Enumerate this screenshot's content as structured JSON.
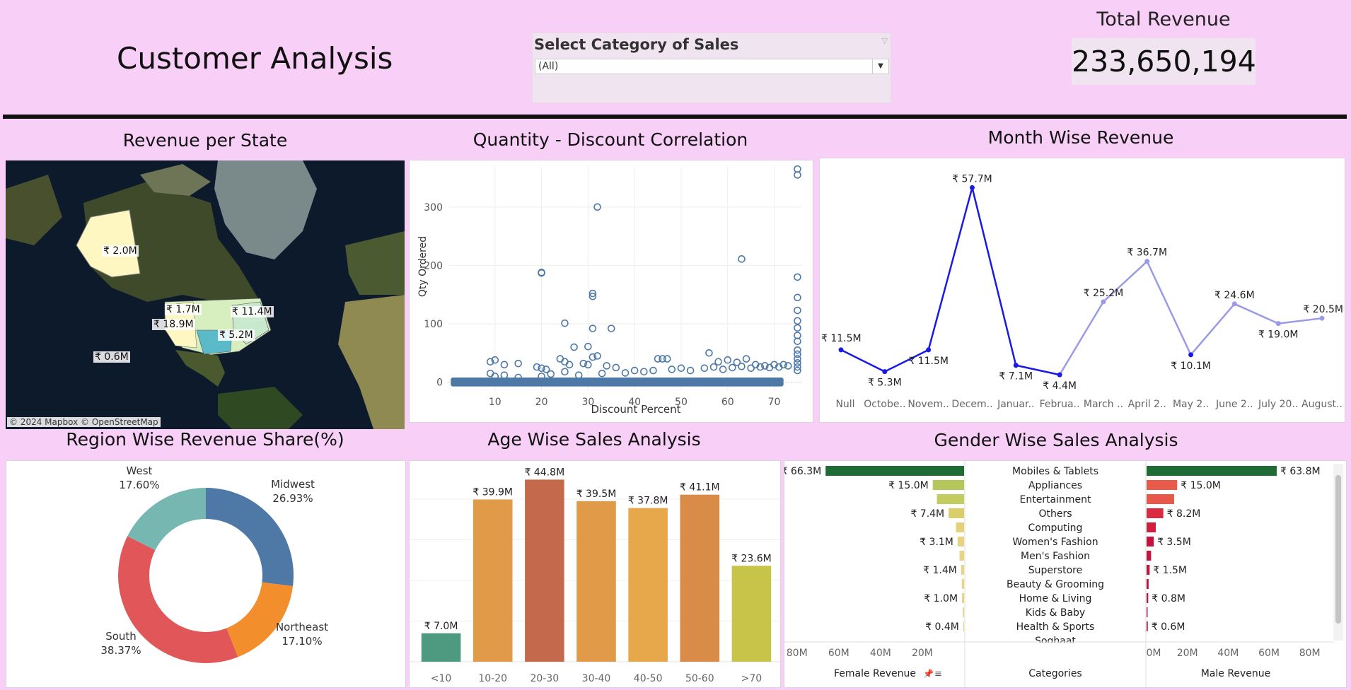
{
  "header": {
    "title": "Customer Analysis",
    "filter": {
      "label": "Select Category of Sales",
      "value": "(All)"
    },
    "kpi": {
      "label": "Total Revenue",
      "value": "233,650,194"
    }
  },
  "map": {
    "title": "Revenue per State",
    "attribution": "© 2024 Mapbox © OpenStreetMap",
    "labels": [
      "₹ 2.0M",
      "₹ 1.7M",
      "₹ 11.4M",
      "₹ 18.9M",
      "₹ 5.2M",
      "₹ 0.6M"
    ]
  },
  "scatter": {
    "title": "Quantity - Discount Correlation",
    "chart_data": {
      "type": "scatter",
      "xlabel": "Discount Percent",
      "ylabel": "Qty Ordered",
      "xlim": [
        0,
        76
      ],
      "ylim": [
        -15,
        370
      ],
      "xticks": [
        10,
        20,
        30,
        40,
        50,
        60,
        70
      ],
      "yticks": [
        0,
        100,
        200,
        300
      ],
      "points": [
        [
          75,
          365
        ],
        [
          75,
          355
        ],
        [
          32,
          300
        ],
        [
          63,
          211
        ],
        [
          20,
          188
        ],
        [
          20,
          187
        ],
        [
          75,
          180
        ],
        [
          75,
          145
        ],
        [
          31,
          152
        ],
        [
          31,
          147
        ],
        [
          75,
          123
        ],
        [
          75,
          105
        ],
        [
          25,
          101
        ],
        [
          35,
          92
        ],
        [
          31,
          92
        ],
        [
          75,
          93
        ],
        [
          75,
          80
        ],
        [
          75,
          70
        ],
        [
          27,
          60
        ],
        [
          30,
          61
        ],
        [
          56,
          50
        ],
        [
          31,
          43
        ],
        [
          32,
          45
        ],
        [
          75,
          55
        ],
        [
          75,
          48
        ],
        [
          75,
          40
        ],
        [
          75,
          33
        ],
        [
          75,
          26
        ],
        [
          75,
          20
        ],
        [
          9,
          35
        ],
        [
          10,
          38
        ],
        [
          12,
          30
        ],
        [
          15,
          32
        ],
        [
          19,
          26
        ],
        [
          20,
          24
        ],
        [
          21,
          22
        ],
        [
          24,
          40
        ],
        [
          25,
          35
        ],
        [
          26,
          30
        ],
        [
          29,
          32
        ],
        [
          30,
          30
        ],
        [
          34,
          28
        ],
        [
          36,
          25
        ],
        [
          45,
          40
        ],
        [
          46,
          40
        ],
        [
          47,
          40
        ],
        [
          58,
          35
        ],
        [
          60,
          38
        ],
        [
          62,
          34
        ],
        [
          64,
          40
        ],
        [
          66,
          30
        ],
        [
          68,
          28
        ],
        [
          70,
          30
        ],
        [
          72,
          30
        ],
        [
          73,
          28
        ],
        [
          10,
          10
        ],
        [
          12,
          12
        ],
        [
          15,
          8
        ],
        [
          20,
          10
        ],
        [
          22,
          14
        ],
        [
          25,
          18
        ],
        [
          28,
          12
        ],
        [
          33,
          15
        ],
        [
          38,
          16
        ],
        [
          40,
          20
        ],
        [
          42,
          18
        ],
        [
          44,
          20
        ],
        [
          48,
          22
        ],
        [
          50,
          24
        ],
        [
          52,
          20
        ],
        [
          55,
          24
        ],
        [
          57,
          26
        ],
        [
          59,
          22
        ],
        [
          61,
          25
        ],
        [
          63,
          27
        ],
        [
          65,
          24
        ],
        [
          67,
          26
        ],
        [
          69,
          25
        ],
        [
          71,
          26
        ],
        [
          9,
          15
        ]
      ]
    }
  },
  "month": {
    "title": "Month Wise Revenue",
    "chart_data": {
      "type": "line",
      "categories": [
        "Null",
        "Octobe..",
        "Novem..",
        "Decem..",
        "Januar..",
        "Februa..",
        "March ..",
        "April 2..",
        "May 2..",
        "June 2..",
        "July 20..",
        "August.."
      ],
      "values": [
        11.5,
        5.3,
        11.5,
        57.7,
        7.1,
        4.4,
        25.2,
        36.7,
        10.1,
        24.6,
        19.0,
        20.5
      ],
      "labels": [
        "₹ 11.5M",
        "₹ 5.3M",
        "₹ 11.5M",
        "₹ 57.7M",
        "₹ 7.1M",
        "₹ 4.4M",
        "₹ 25.2M",
        "₹ 36.7M",
        "₹ 10.1M",
        "₹ 24.6M",
        "₹ 19.0M",
        "₹ 20.5M"
      ],
      "colors": {
        "dark": "#1a1ae6",
        "light": "#9a9ae6"
      }
    }
  },
  "region": {
    "title": "Region Wise Revenue Share(%)",
    "chart_data": {
      "type": "pie",
      "slices": [
        {
          "name": "Midwest",
          "value": 26.93,
          "label": "26.93%",
          "color": "#4e79a7"
        },
        {
          "name": "Northeast",
          "value": 17.1,
          "label": "17.10%",
          "color": "#f28e2b"
        },
        {
          "name": "South",
          "value": 38.37,
          "label": "38.37%",
          "color": "#e15759"
        },
        {
          "name": "West",
          "value": 17.6,
          "label": "17.60%",
          "color": "#76b7b2"
        }
      ]
    }
  },
  "age": {
    "title": "Age Wise Sales Analysis",
    "chart_data": {
      "type": "bar",
      "categories": [
        "<10",
        "10-20",
        "20-30",
        "30-40",
        "40-50",
        "50-60",
        ">70"
      ],
      "values": [
        7.0,
        39.9,
        44.8,
        39.5,
        37.8,
        41.1,
        23.6
      ],
      "labels": [
        "₹ 7.0M",
        "₹ 39.9M",
        "₹ 44.8M",
        "₹ 39.5M",
        "₹ 37.8M",
        "₹ 41.1M",
        "₹ 23.6M"
      ],
      "colors": [
        "#4e9a80",
        "#e09a48",
        "#c4694c",
        "#e09a48",
        "#e6a84a",
        "#d88c48",
        "#c8c44a"
      ],
      "ylim": [
        0,
        48
      ]
    }
  },
  "gender": {
    "title": "Gender Wise Sales Analysis",
    "chart_data": {
      "type": "bar",
      "categories": [
        "Mobiles & Tablets",
        "Appliances",
        "Entertainment",
        "Others",
        "Computing",
        "Women's Fashion",
        "Men's Fashion",
        "Superstore",
        "Beauty & Grooming",
        "Home & Living",
        "Kids & Baby",
        "Health & Sports",
        "Soghaat"
      ],
      "female": [
        66.3,
        15.0,
        13.0,
        7.4,
        3.9,
        3.1,
        2.2,
        1.4,
        1.1,
        1.0,
        0.6,
        0.4,
        0.2
      ],
      "male": [
        63.8,
        15.0,
        13.5,
        8.2,
        4.5,
        3.5,
        2.2,
        1.5,
        1.0,
        0.8,
        0.5,
        0.6,
        0.2
      ],
      "female_labels": [
        "₹ 66.3M",
        "₹ 15.0M",
        "",
        "₹ 7.4M",
        "",
        "₹ 3.1M",
        "",
        "₹ 1.4M",
        "",
        "₹ 1.0M",
        "",
        "₹ 0.4M",
        ""
      ],
      "male_labels": [
        "₹ 63.8M",
        "₹ 15.0M",
        "",
        "₹ 8.2M",
        "",
        "₹ 3.5M",
        "",
        "₹ 1.5M",
        "",
        "₹ 0.8M",
        "",
        "₹ 0.6M",
        ""
      ],
      "female_colors": [
        "#1e6b35",
        "#b5c75a",
        "#c2cc5f",
        "#d9cf6a",
        "#e3d27a",
        "#e6d27f",
        "#e8d484",
        "#e8d484",
        "#e8d484",
        "#e8d484",
        "#e8d484",
        "#e8d484",
        "#e8d484"
      ],
      "male_colors": [
        "#1e6b35",
        "#e85a4a",
        "#e8584a",
        "#d92a40",
        "#d11d3e",
        "#c8103c",
        "#c8103c",
        "#c8103c",
        "#c8103c",
        "#c8103c",
        "#c8103c",
        "#c8103c",
        "#c8103c"
      ],
      "axis_ticks_female": [
        "80M",
        "60M",
        "40M",
        "20M"
      ],
      "axis_ticks_male": [
        "0M",
        "20M",
        "40M",
        "60M",
        "80M"
      ],
      "xlabel_female": "Female Revenue",
      "xlabel_male": "Male Revenue",
      "xlabel_categories": "Categories",
      "xlim": [
        0,
        86
      ]
    }
  }
}
